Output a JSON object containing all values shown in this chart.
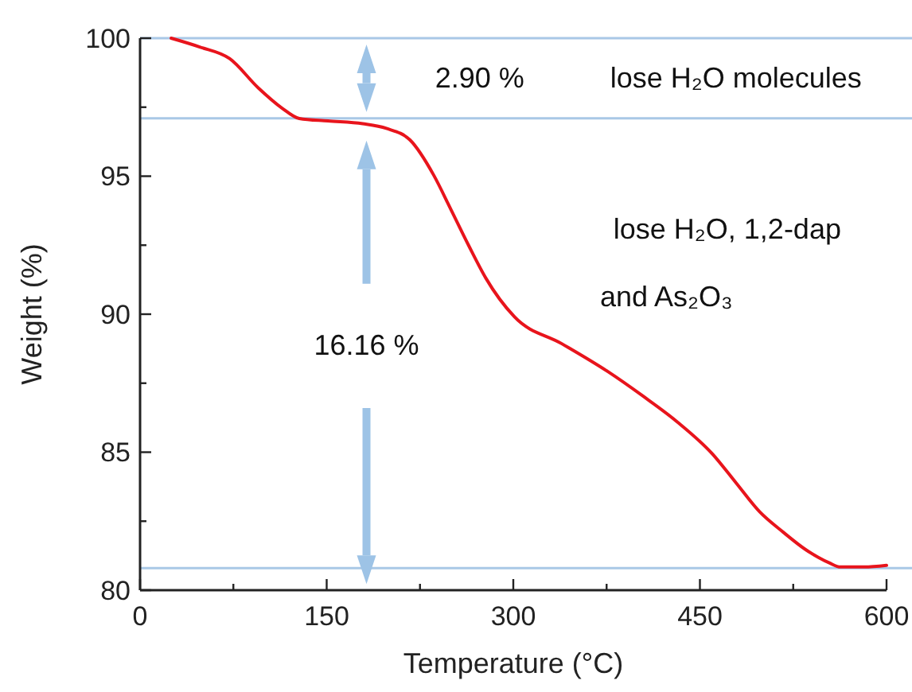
{
  "chart_data": {
    "type": "line",
    "xlabel": "Temperature (°C)",
    "ylabel": "Weight (%)",
    "xlim": [
      0,
      600
    ],
    "ylim": [
      80,
      100
    ],
    "xticks": [
      0,
      {
        "value": 75,
        "label": null
      },
      150,
      {
        "value": 225,
        "label": null
      },
      300,
      {
        "value": 375,
        "label": null
      },
      450,
      {
        "value": 525,
        "label": null
      },
      600
    ],
    "yticks": [
      80,
      {
        "value": 82.5,
        "label": null
      },
      85,
      {
        "value": 87.5,
        "label": null
      },
      90,
      {
        "value": 92.5,
        "label": null
      },
      95,
      {
        "value": 97.5,
        "label": null
      },
      100
    ],
    "grid": false,
    "marker": "none",
    "line_style": "solid",
    "series": [
      {
        "color": "#e8141c",
        "x": [
          25,
          48,
          72,
          95,
          114,
          128,
          151,
          179,
          198,
          217,
          236,
          250,
          264,
          278,
          301,
          339,
          376,
          404,
          432,
          460,
          479,
          498,
          517,
          535,
          554,
          563,
          582,
          600
        ],
        "values": [
          100,
          99.68,
          99.26,
          98.2,
          97.47,
          97.09,
          97.0,
          96.9,
          96.73,
          96.31,
          95.04,
          93.78,
          92.5,
          91.3,
          89.9,
          88.93,
          87.92,
          87.04,
          86.09,
          84.94,
          83.89,
          82.84,
          82.1,
          81.47,
          80.99,
          80.84,
          80.84,
          80.9
        ]
      }
    ],
    "ref_lines": [
      {
        "axis": "y",
        "value": 100,
        "color": "#a9c8e6"
      },
      {
        "axis": "y",
        "value": 97.1,
        "color": "#a9c8e6"
      },
      {
        "axis": "y",
        "value": 80.8,
        "color": "#a9c8e6"
      }
    ],
    "annotations": [
      "2.90 %",
      "lose H₂O molecules",
      "lose H₂O, 1,2-dap",
      "and As₂O₃",
      "16.16 %"
    ]
  }
}
